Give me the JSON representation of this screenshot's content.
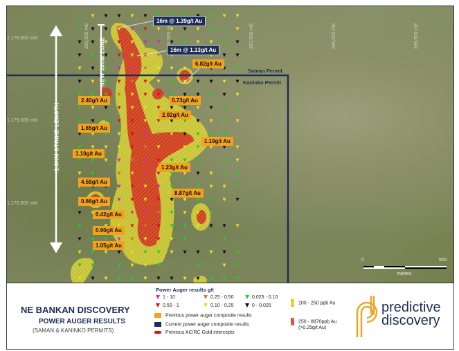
{
  "map": {
    "eastings": [
      "396,500 mE",
      "397,000 mE",
      "397,500 mE",
      "398,000 mE",
      "398,500 mE"
    ],
    "northings": [
      "1,176,000 mN",
      "1,175,500 mN",
      "1,175,000 mN"
    ],
    "permits": {
      "saman": "Saman Permit",
      "kaninko": "Kaninko Permit"
    },
    "strike_label": "~1.3KM STRIKE LENGTH",
    "zone_label": "NEW 300M ZONE",
    "current_labels": [
      "16m @ 1.39g/t Au",
      "16m @ 1.13g/t Au"
    ],
    "previous_labels": [
      "6.82g/t Au",
      "2.40g/t Au",
      "0.73g/t Au",
      "2.02g/t Au",
      "1.65g/t Au",
      "1.19g/t Au",
      "1.10g/t Au",
      "1.23g/t Au",
      "4.58g/t Au",
      "8.87g/t Au",
      "0.66g/t Au",
      "0.42g/t Au",
      "0.90g/t Au",
      "1.05g/t Au"
    ],
    "scale": {
      "start": "0",
      "end": "500",
      "unit": "metres"
    }
  },
  "legend": {
    "title": "NE BANKAN DISCOVERY",
    "subtitle": "POWER AUGER RESULTS",
    "permits": "(SAMAN & KANINKO PERMITS)",
    "results_heading": "Power Auger results g/t",
    "classes": [
      {
        "label": "1 - 10",
        "color": "#e020c0"
      },
      {
        "label": "0.50 - 1",
        "color": "#e01010"
      },
      {
        "label": "0.25 - 0.50",
        "color": "#d07a20"
      },
      {
        "label": "0.10 - 0.25",
        "color": "#e8e020"
      },
      {
        "label": "0.025 - 0.10",
        "color": "#20d020"
      },
      {
        "label": "0 - 0.025",
        "color": "#111111"
      }
    ],
    "composite_prev": "Previous power auger composite results",
    "composite_curr": "Current power auger composite results",
    "acrc": "Previous AC/RC Gold intercepts",
    "ppb_low": "100 - 250 ppb Au",
    "ppb_high": "250 - 8870ppb Au",
    "ppb_high_note": "(>0.25g/t Au)",
    "brand_line1": "predictive",
    "brand_line2": "discovery"
  }
}
